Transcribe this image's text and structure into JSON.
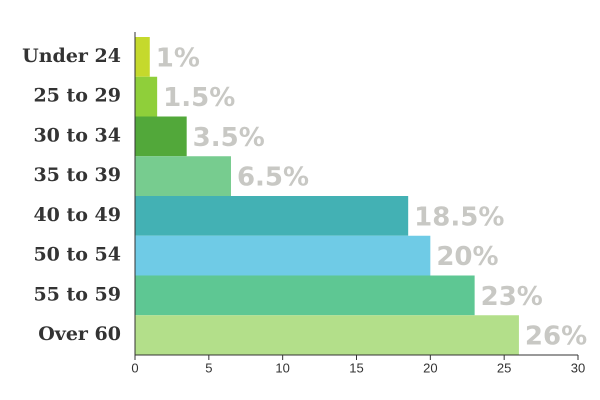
{
  "chart_data": {
    "type": "bar",
    "orientation": "horizontal",
    "categories": [
      "Under 24",
      "25 to 29",
      "30 to 34",
      "35 to 39",
      "40 to 49",
      "50 to 54",
      "55 to 59",
      "Over 60"
    ],
    "values": [
      1,
      1.5,
      3.5,
      6.5,
      18.5,
      20,
      23,
      26
    ],
    "value_labels": [
      "1%",
      "1.5%",
      "3.5%",
      "6.5%",
      "18.5%",
      "20%",
      "23%",
      "26%"
    ],
    "colors": [
      "#c5d92c",
      "#8fcf3a",
      "#52a83a",
      "#77cc8f",
      "#43b1b4",
      "#6fcbe6",
      "#5ec793",
      "#b3df8a"
    ],
    "xlim": [
      0,
      30
    ],
    "xticks": [
      0,
      5,
      10,
      15,
      20,
      25,
      30
    ],
    "grid": false
  }
}
